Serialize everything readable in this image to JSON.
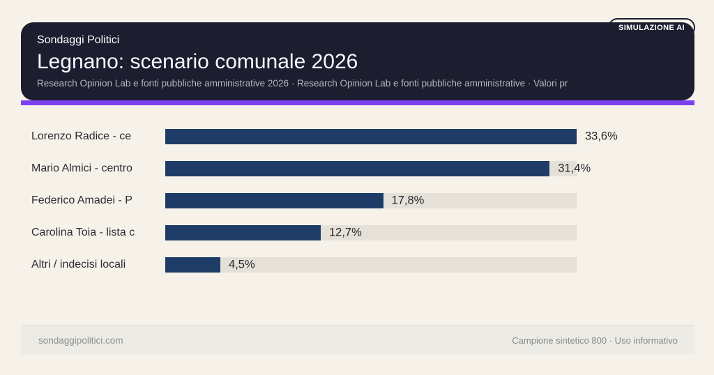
{
  "badge": {
    "label": "SIMULAZIONE AI"
  },
  "header": {
    "kicker": "Sondaggi Politici",
    "title": "Legnano: scenario comunale 2026",
    "subtitle": "Research Opinion Lab e fonti pubbliche amministrative 2026 · Research Opinion Lab e fonti pubbliche amministrative · Valori pr"
  },
  "chart_data": {
    "type": "bar",
    "orientation": "horizontal",
    "categories": [
      "Lorenzo Radice - ce",
      "Mario Almici - centro",
      "Federico Amadei - P",
      "Carolina Toia - lista c",
      "Altri / indecisi locali"
    ],
    "values": [
      33.6,
      31.4,
      17.8,
      12.7,
      4.5
    ],
    "value_labels": [
      "33,6%",
      "31,4%",
      "17,8%",
      "12,7%",
      "4,5%"
    ],
    "unit": "%",
    "xlim": [
      0,
      33.6
    ],
    "grid": false,
    "legend": false,
    "bar_color": "#1f3c66",
    "track_color": "#e5e1d8"
  },
  "footer": {
    "left": "sondaggipolitici.com",
    "right": "Campione sintetico 800 · Uso informativo"
  },
  "colors": {
    "page_background": "#f7f2e9",
    "card_background": "#1c1e30",
    "accent_purple": "#7d3ff0",
    "bar_navy": "#1f3c66",
    "track_gray": "#e5e1d8",
    "footer_band": "#edebe5",
    "text_dark": "#2c2c34",
    "text_muted": "#8e8e95",
    "subtitle_gray": "#b4b4c2"
  }
}
